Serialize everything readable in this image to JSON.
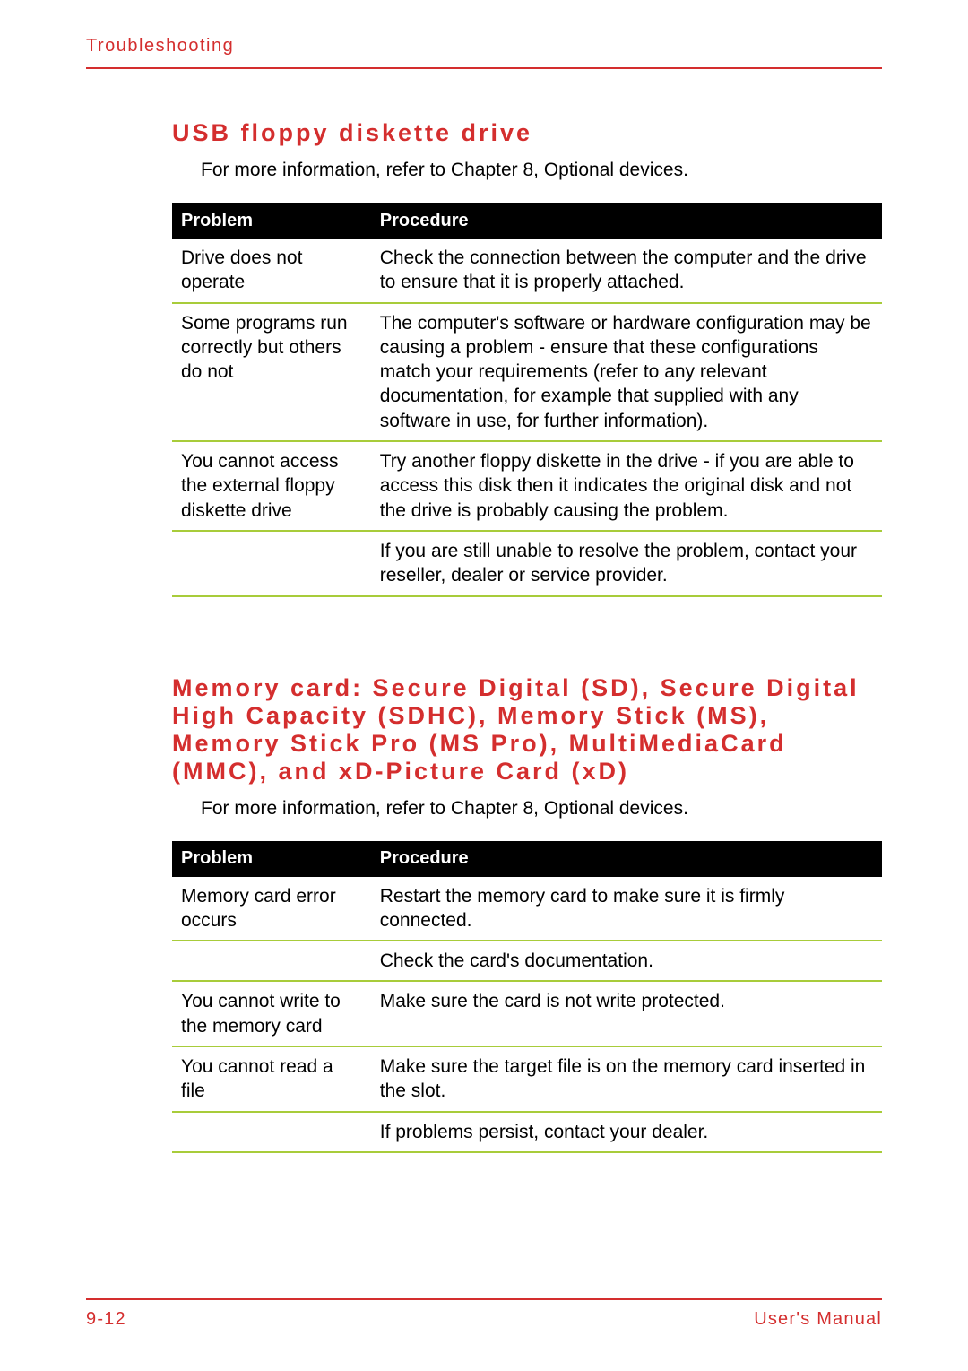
{
  "header": {
    "section_label": "Troubleshooting"
  },
  "colors": {
    "accent": "#d42e2e",
    "table_header_bg": "#000000",
    "row_divider": "#a8cc3a",
    "text": "#000000",
    "background": "#ffffff"
  },
  "section1": {
    "title": "USB floppy diskette drive",
    "intro": "For more information, refer to Chapter 8, Optional devices.",
    "table": {
      "columns": [
        "Problem",
        "Procedure"
      ],
      "rows": [
        {
          "problem": "Drive does not operate",
          "procedure": "Check the connection between the computer and the drive to ensure that it is properly attached."
        },
        {
          "problem": "Some programs run correctly but others do not",
          "procedure": "The computer's software or hardware configuration may be causing a problem - ensure that these configurations match your requirements (refer to any relevant documentation, for example that supplied with any software in use, for further information)."
        },
        {
          "problem": "You cannot access the external floppy diskette drive",
          "procedure": "Try another floppy diskette in the drive - if you are able to access this disk then it indicates the original disk and not the drive is probably causing the problem."
        },
        {
          "problem": "",
          "procedure": "If you are still unable to resolve the problem, contact your reseller, dealer or service provider."
        }
      ]
    }
  },
  "section2": {
    "title": "Memory card: Secure Digital (SD), Secure Digital High Capacity (SDHC), Memory Stick (MS), Memory Stick Pro (MS Pro), MultiMediaCard (MMC), and xD-Picture Card (xD)",
    "intro": "For more information, refer to Chapter 8, Optional devices.",
    "table": {
      "columns": [
        "Problem",
        "Procedure"
      ],
      "rows": [
        {
          "problem": "Memory card error occurs",
          "procedure": "Restart the memory card to make sure it is firmly connected."
        },
        {
          "problem": "",
          "procedure": "Check the card's documentation."
        },
        {
          "problem": "You cannot write to the memory card",
          "procedure": "Make sure the card is not write protected."
        },
        {
          "problem": "You cannot read a file",
          "procedure": "Make sure the target file is on the memory card inserted in the slot."
        },
        {
          "problem": "",
          "procedure": "If problems persist, contact your dealer."
        }
      ]
    }
  },
  "footer": {
    "page_number": "9-12",
    "doc_label": "User's Manual"
  }
}
